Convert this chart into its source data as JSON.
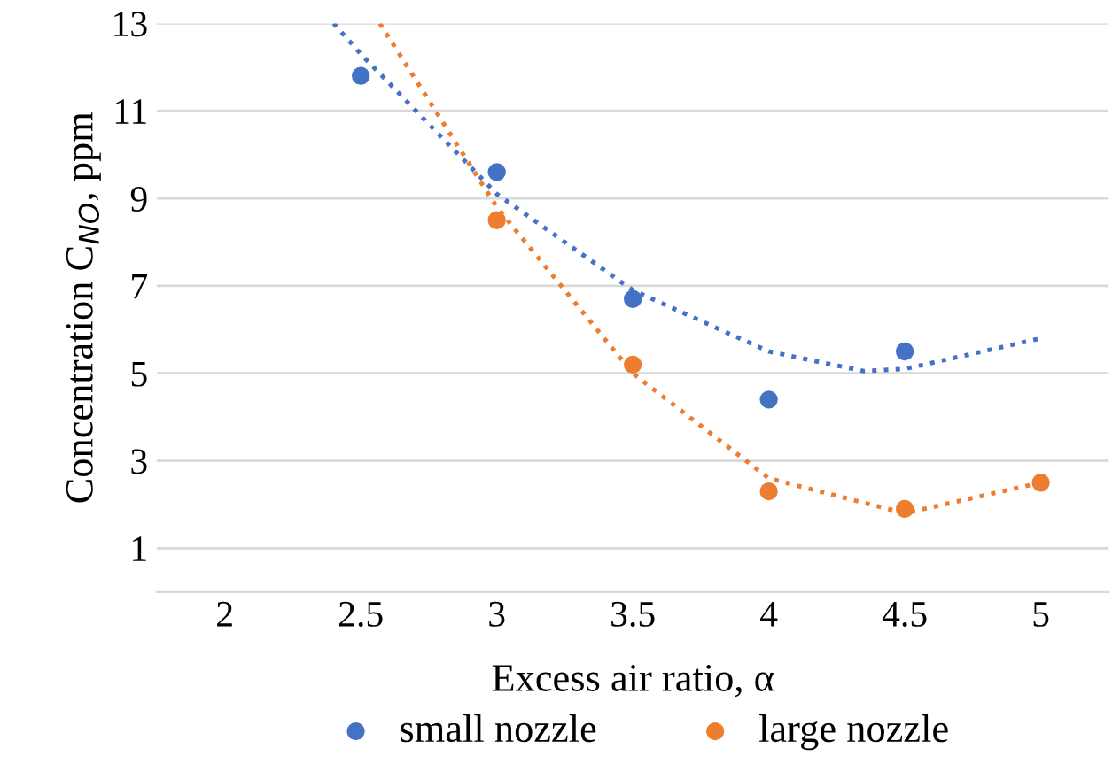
{
  "chart_data": {
    "type": "scatter",
    "xlabel": "Excess air ratio, α",
    "ylabel": "Concentration C$_{NO}$, ppm",
    "xlim": [
      1.75,
      5.25
    ],
    "xticks": [
      2,
      2.5,
      3,
      3.5,
      4,
      4.5,
      5
    ],
    "ylim": [
      0,
      13
    ],
    "yticks": [
      1,
      3,
      5,
      7,
      9,
      11,
      13
    ],
    "grid": "y",
    "legend": "bottom",
    "series": [
      {
        "name": "small nozzle",
        "marker": "circle",
        "color": "#4472c4",
        "x": [
          2.5,
          3,
          3.5,
          4,
          4.5
        ],
        "values": [
          11.8,
          9.6,
          6.7,
          4.4,
          5.5
        ]
      },
      {
        "name": "large nozzle",
        "marker": "circle",
        "color": "#ed7d31",
        "x": [
          3,
          3.5,
          4,
          4.5,
          5
        ],
        "values": [
          8.5,
          5.2,
          2.3,
          1.9,
          2.5
        ]
      },
      {
        "type": "line",
        "marker": "none",
        "line_style": "dotted",
        "color": "#4472c4",
        "x": [
          2.4,
          2.5,
          3,
          3.5,
          4,
          4.35,
          4.5,
          5
        ],
        "values": [
          13,
          12.3,
          9.1,
          6.9,
          5.5,
          5.05,
          5.1,
          5.8
        ]
      },
      {
        "type": "line",
        "marker": "none",
        "line_style": "dotted",
        "color": "#ed7d31",
        "x": [
          2.57,
          3,
          3.5,
          4,
          4.5,
          5
        ],
        "values": [
          13,
          8.8,
          5,
          2.6,
          1.8,
          2.5
        ]
      }
    ]
  }
}
